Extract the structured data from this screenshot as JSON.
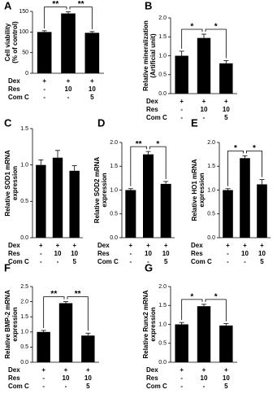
{
  "chart_data": [
    {
      "type": "bar",
      "panel": "A",
      "ylabel": [
        "Cell viability",
        "(% of control)"
      ],
      "color": "#000000",
      "values": [
        100,
        145,
        98
      ],
      "errors": [
        3,
        4,
        3
      ],
      "ylim": [
        0,
        150
      ],
      "yticks": [
        0,
        50,
        100,
        150
      ],
      "significance": [
        {
          "bars": [
            0,
            1
          ],
          "label": "**"
        },
        {
          "bars": [
            1,
            2
          ],
          "label": "**"
        }
      ],
      "treatments": [
        {
          "name": "Dex",
          "values": [
            "+",
            "+",
            "+"
          ]
        },
        {
          "name": "Res",
          "values": [
            "-",
            "10",
            "10"
          ]
        },
        {
          "name": "Com C",
          "values": [
            "-",
            "-",
            "5"
          ]
        }
      ]
    },
    {
      "type": "bar",
      "panel": "B",
      "ylabel": [
        "Relative mineralization",
        "(Artificial unit)"
      ],
      "color": "#000000",
      "values": [
        1.0,
        1.47,
        0.8
      ],
      "errors": [
        0.12,
        0.1,
        0.07
      ],
      "ylim": [
        0,
        2
      ],
      "yticks": [
        {
          "value": 0,
          "label": "0.0"
        },
        {
          "value": 0.5,
          "label": "0.5"
        },
        {
          "value": 1,
          "label": "1.0"
        },
        {
          "value": 1.5,
          "label": "1.5"
        },
        {
          "value": 2,
          "label": "2.0"
        }
      ],
      "significance": [
        {
          "bars": [
            0,
            1
          ],
          "label": "*"
        },
        {
          "bars": [
            1,
            2
          ],
          "label": "*"
        }
      ],
      "treatments": [
        {
          "name": "Dex",
          "values": [
            "+",
            "+",
            "+"
          ]
        },
        {
          "name": "Res",
          "values": [
            "-",
            "10",
            "10"
          ]
        },
        {
          "name": "Com C",
          "values": [
            "-",
            "-",
            "5"
          ]
        }
      ]
    },
    {
      "type": "bar",
      "panel": "C",
      "ylabel": [
        "Relative SOD1 mRNA",
        "expression"
      ],
      "color": "#000000",
      "values": [
        1.0,
        1.1,
        0.92
      ],
      "errors": [
        0.07,
        0.1,
        0.07
      ],
      "ylim": [
        0,
        1.5
      ],
      "yticks": [
        {
          "value": 0,
          "label": "0.0"
        },
        {
          "value": 0.5,
          "label": "0.5"
        },
        {
          "value": 1,
          "label": "1.0"
        },
        {
          "value": 1.5,
          "label": "1.5"
        }
      ],
      "significance": [],
      "treatments": [
        {
          "name": "Dex",
          "values": [
            "+",
            "+",
            "+"
          ]
        },
        {
          "name": "Res",
          "values": [
            "-",
            "10",
            "10"
          ]
        },
        {
          "name": "Com C",
          "values": [
            "-",
            "-",
            "5"
          ]
        }
      ]
    },
    {
      "type": "bar",
      "panel": "D",
      "ylabel": [
        "Relative SOD2 mRNA",
        "expression"
      ],
      "color": "#000000",
      "values": [
        1.0,
        1.75,
        1.13
      ],
      "errors": [
        0.03,
        0.06,
        0.05
      ],
      "ylim": [
        0,
        2
      ],
      "yticks": [
        {
          "value": 0,
          "label": "0.0"
        },
        {
          "value": 0.5,
          "label": "0.5"
        },
        {
          "value": 1,
          "label": "1.0"
        },
        {
          "value": 1.5,
          "label": "1.5"
        },
        {
          "value": 2,
          "label": "2.0"
        }
      ],
      "significance": [
        {
          "bars": [
            0,
            1
          ],
          "label": "**"
        },
        {
          "bars": [
            1,
            2
          ],
          "label": "*"
        }
      ],
      "treatments": [
        {
          "name": "Dex",
          "values": [
            "+",
            "+",
            "+"
          ]
        },
        {
          "name": "Res",
          "values": [
            "-",
            "10",
            "10"
          ]
        },
        {
          "name": "Com C",
          "values": [
            "-",
            "-",
            "5"
          ]
        }
      ]
    },
    {
      "type": "bar",
      "panel": "E",
      "ylabel": [
        "Relative HO1 mRNA",
        "expression"
      ],
      "color": "#000000",
      "values": [
        1.0,
        1.67,
        1.12
      ],
      "errors": [
        0.03,
        0.05,
        0.1
      ],
      "ylim": [
        0,
        2
      ],
      "yticks": [
        {
          "value": 0,
          "label": "0.0"
        },
        {
          "value": 0.5,
          "label": "0.5"
        },
        {
          "value": 1,
          "label": "1.0"
        },
        {
          "value": 1.5,
          "label": "1.5"
        },
        {
          "value": 2,
          "label": "2.0"
        }
      ],
      "significance": [
        {
          "bars": [
            0,
            1
          ],
          "label": "*"
        },
        {
          "bars": [
            1,
            2
          ],
          "label": "*"
        }
      ],
      "treatments": [
        {
          "name": "Dex",
          "values": [
            "+",
            "+",
            "+"
          ]
        },
        {
          "name": "Res",
          "values": [
            "-",
            "10",
            "10"
          ]
        },
        {
          "name": "Com C",
          "values": [
            "-",
            "-",
            "5"
          ]
        }
      ]
    },
    {
      "type": "bar",
      "panel": "F",
      "ylabel": [
        "Relative BMP-2 mRNA",
        "expression"
      ],
      "color": "#000000",
      "values": [
        1.0,
        1.95,
        0.88
      ],
      "errors": [
        0.05,
        0.05,
        0.08
      ],
      "ylim": [
        0,
        2.5
      ],
      "yticks": [
        {
          "value": 0,
          "label": "0.0"
        },
        {
          "value": 0.5,
          "label": "0.5"
        },
        {
          "value": 1,
          "label": "1.0"
        },
        {
          "value": 1.5,
          "label": "1.5"
        },
        {
          "value": 2,
          "label": "2.0"
        },
        {
          "value": 2.5,
          "label": "2.5"
        }
      ],
      "significance": [
        {
          "bars": [
            0,
            1
          ],
          "label": "**"
        },
        {
          "bars": [
            1,
            2
          ],
          "label": "**"
        }
      ],
      "treatments": [
        {
          "name": "Dex",
          "values": [
            "+",
            "+",
            "+"
          ]
        },
        {
          "name": "Res",
          "values": [
            "-",
            "10",
            "10"
          ]
        },
        {
          "name": "Com C",
          "values": [
            "-",
            "-",
            "5"
          ]
        }
      ]
    },
    {
      "type": "bar",
      "panel": "G",
      "ylabel": [
        "Relative Runx2 mRNA",
        "expression"
      ],
      "color": "#000000",
      "values": [
        1.0,
        1.48,
        0.97
      ],
      "errors": [
        0.05,
        0.05,
        0.05
      ],
      "ylim": [
        0,
        2
      ],
      "yticks": [
        {
          "value": 0,
          "label": "0.0"
        },
        {
          "value": 0.5,
          "label": "0.5"
        },
        {
          "value": 1,
          "label": "1.0"
        },
        {
          "value": 1.5,
          "label": "1.5"
        },
        {
          "value": 2,
          "label": "2.0"
        }
      ],
      "significance": [
        {
          "bars": [
            0,
            1
          ],
          "label": "*"
        },
        {
          "bars": [
            1,
            2
          ],
          "label": "*"
        }
      ],
      "treatments": [
        {
          "name": "Dex",
          "values": [
            "+",
            "+",
            "+"
          ]
        },
        {
          "name": "Res",
          "values": [
            "-",
            "10",
            "10"
          ]
        },
        {
          "name": "Com C",
          "values": [
            "-",
            "-",
            "5"
          ]
        }
      ]
    }
  ]
}
